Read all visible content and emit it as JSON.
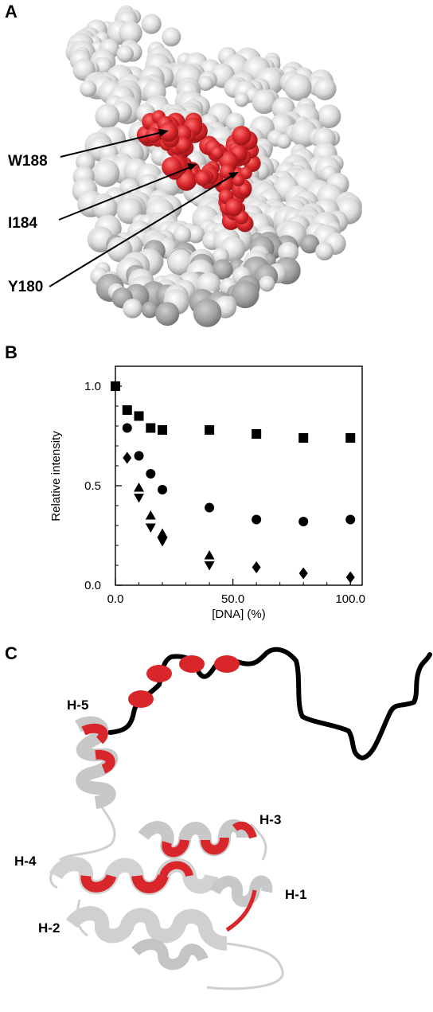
{
  "panels": {
    "a": {
      "letter": "A",
      "residues": [
        "W188",
        "I184",
        "Y180"
      ]
    },
    "b": {
      "letter": "B"
    },
    "c": {
      "letter": "C",
      "helices": [
        "H-5",
        "H-4",
        "H-3",
        "H-1",
        "H-2"
      ]
    }
  },
  "colors": {
    "highlight": "#d8262b",
    "surface": "#e2e2e2",
    "backbone": "#000000",
    "ribbon": "#dcdcdc"
  },
  "chart_data": {
    "type": "scatter",
    "title": "",
    "xlabel": "[DNA] (%)",
    "ylabel": "Relative intensity",
    "xlim": [
      0,
      105
    ],
    "ylim": [
      0,
      1.1
    ],
    "xticks": [
      "0.0",
      "50.0",
      "100.0"
    ],
    "yticks": [
      "0.0",
      "0.5",
      "1.0"
    ],
    "grid": false,
    "legend": "none",
    "series": [
      {
        "marker": "square",
        "x": [
          0,
          5,
          10,
          15,
          20,
          40,
          60,
          80,
          100
        ],
        "y": [
          1.0,
          0.88,
          0.85,
          0.79,
          0.78,
          0.78,
          0.76,
          0.74,
          0.74
        ]
      },
      {
        "marker": "circle",
        "x": [
          5,
          10,
          15,
          20,
          40,
          60,
          80,
          100
        ],
        "y": [
          0.79,
          0.65,
          0.56,
          0.48,
          0.39,
          0.33,
          0.32,
          0.33
        ]
      },
      {
        "marker": "diamond",
        "x": [
          5,
          60,
          80,
          100
        ],
        "y": [
          0.64,
          0.09,
          0.06,
          0.04
        ]
      },
      {
        "marker": "triangle-up",
        "x": [
          10,
          15,
          20,
          40
        ],
        "y": [
          0.49,
          0.35,
          0.26,
          0.15
        ]
      },
      {
        "marker": "triangle-down",
        "x": [
          10,
          15,
          20,
          40
        ],
        "y": [
          0.44,
          0.29,
          0.22,
          0.1
        ]
      }
    ]
  }
}
